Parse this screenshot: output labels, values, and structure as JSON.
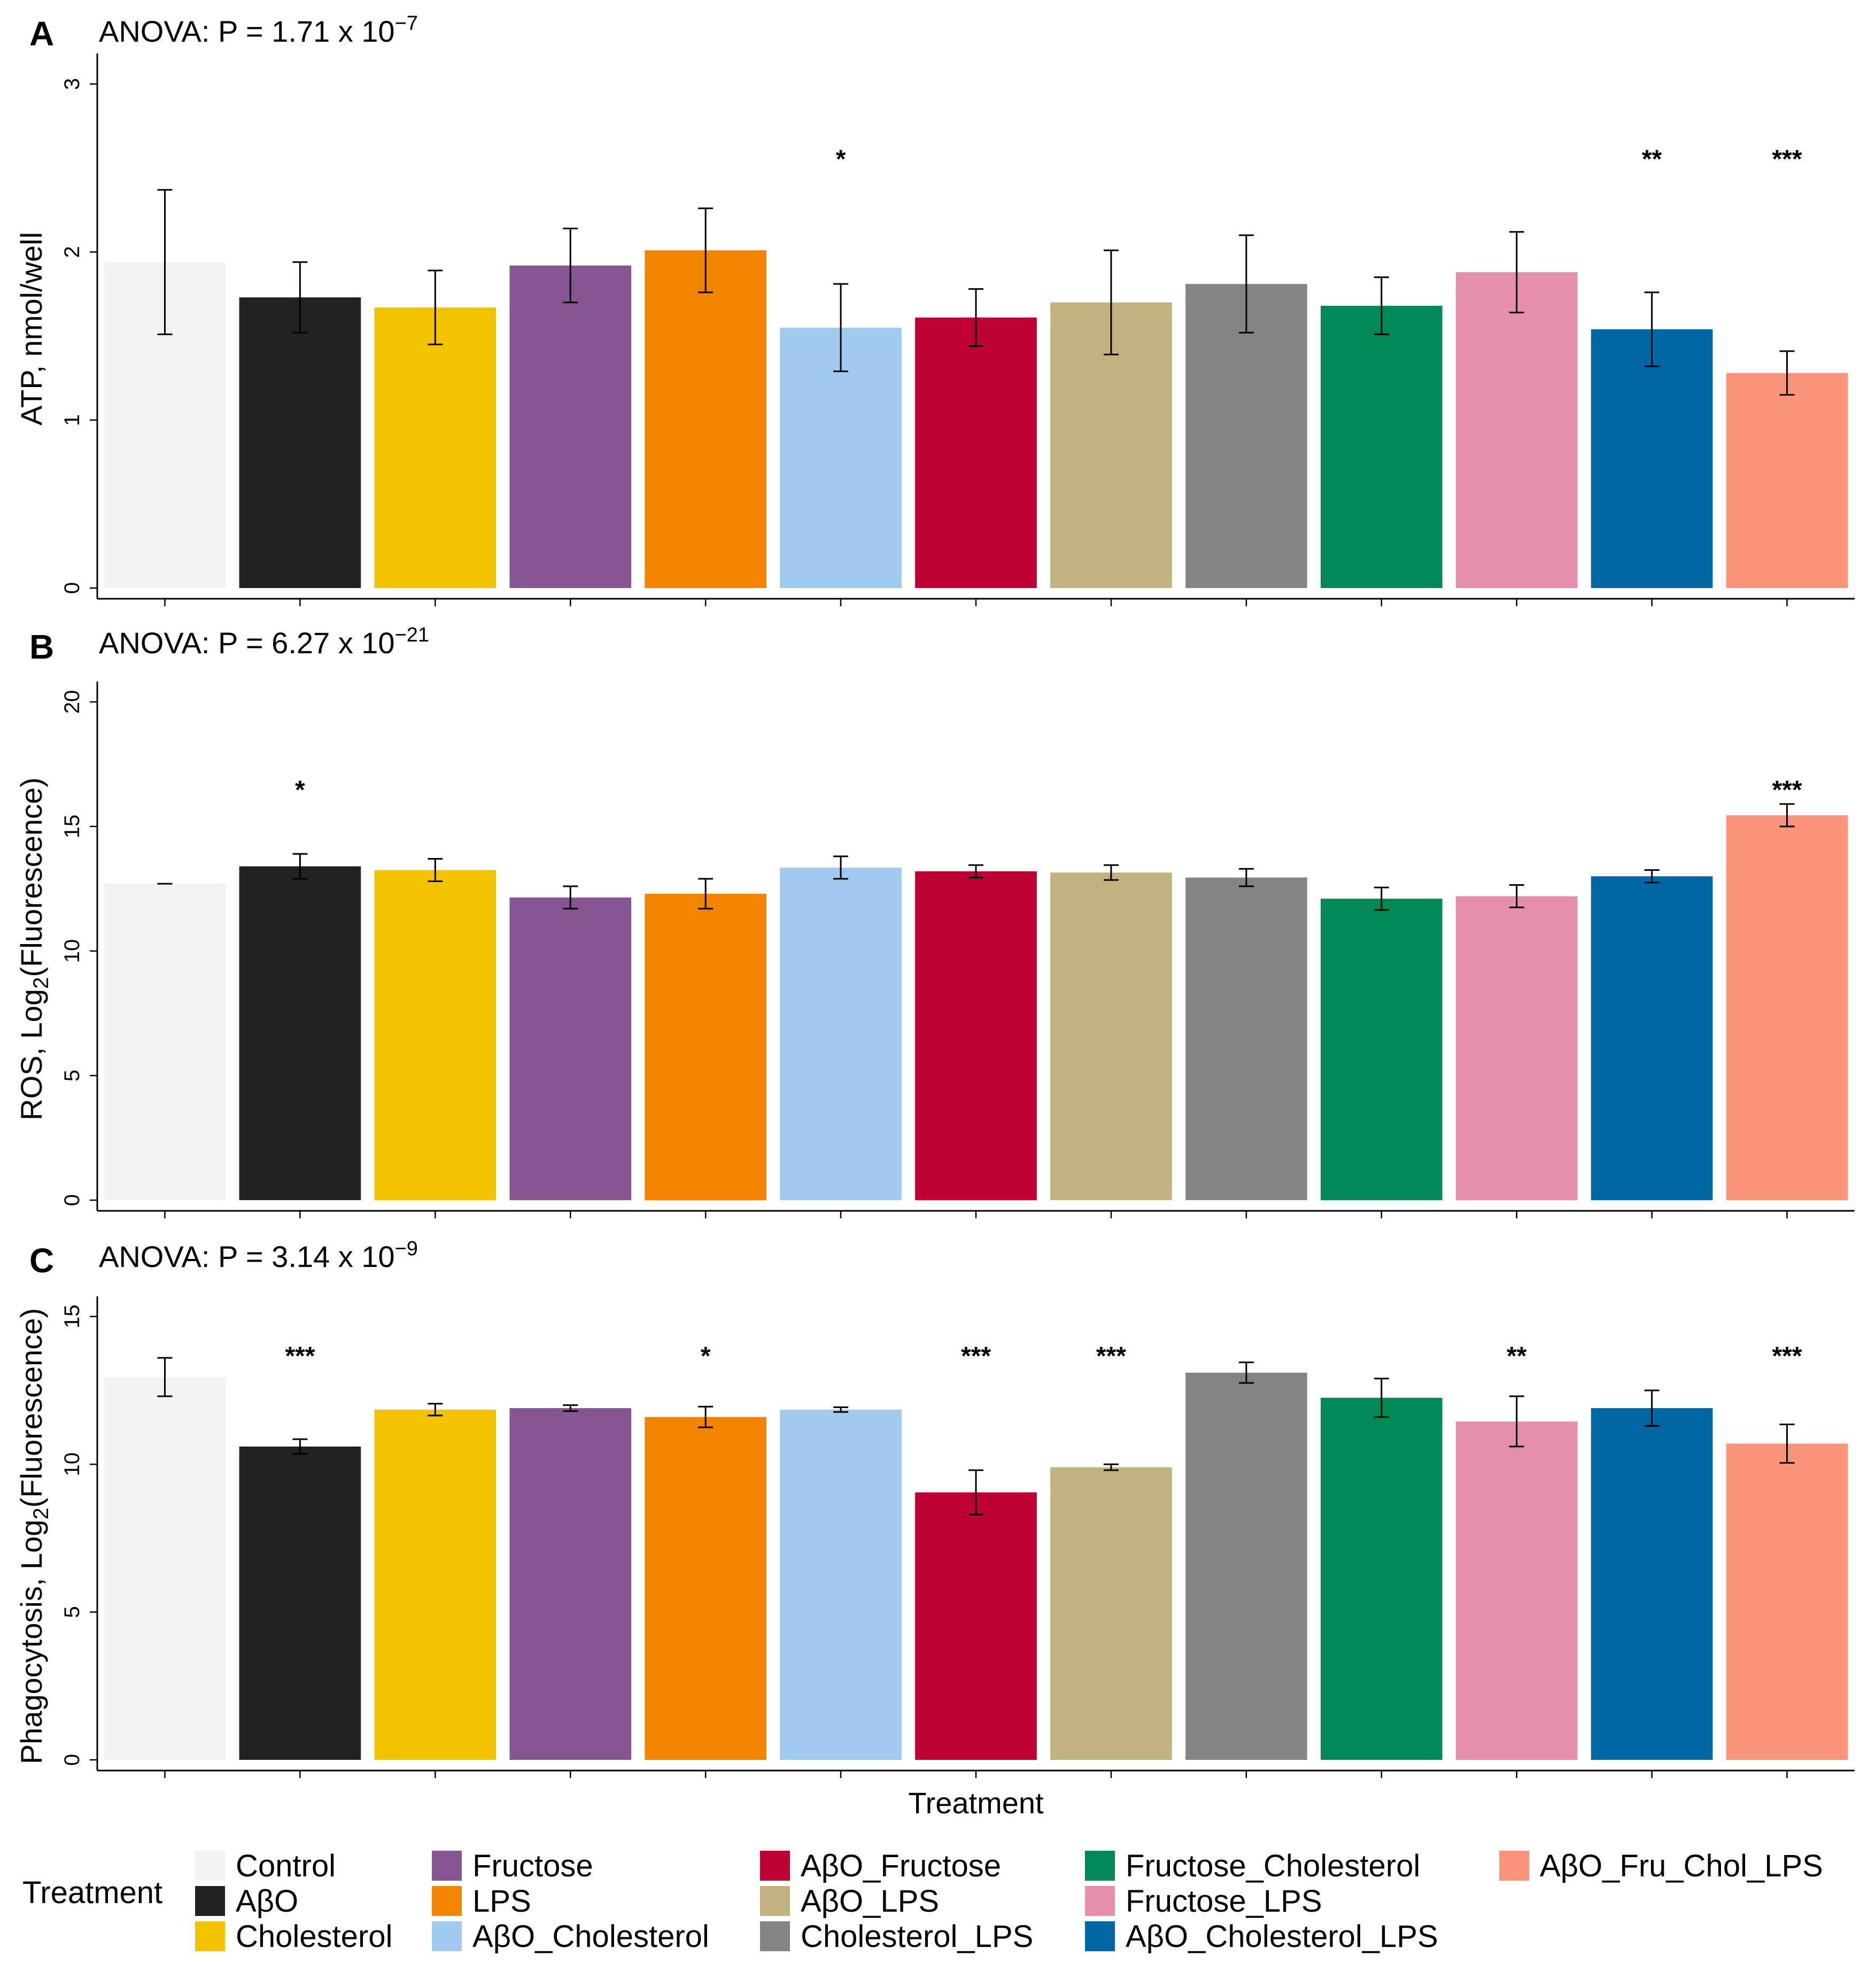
{
  "chart_data": [
    {
      "type": "bar",
      "panel": "A",
      "title": "ANOVA: P = 1.71 x 10",
      "title_exponent": "−7",
      "ylabel": "ATP, nmol/well",
      "ylabel_sub": "",
      "ylabel_suffix": "",
      "xlabel": "",
      "ylim": [
        0,
        3.15
      ],
      "yticks": [
        0,
        1,
        2,
        3
      ],
      "categories": [
        "Control",
        "AβO",
        "Cholesterol",
        "Fructose",
        "LPS",
        "AβO_Cholesterol",
        "AβO_Fructose",
        "AβO_LPS",
        "Cholesterol_LPS",
        "Fructose_Cholesterol",
        "Fructose_LPS",
        "AβO_Cholesterol_LPS",
        "AβO_Fru_Chol_LPS"
      ],
      "values": [
        1.94,
        1.73,
        1.67,
        1.92,
        2.01,
        1.55,
        1.61,
        1.7,
        1.81,
        1.68,
        1.88,
        1.54,
        1.28
      ],
      "errors": [
        0.43,
        0.21,
        0.22,
        0.22,
        0.25,
        0.26,
        0.17,
        0.31,
        0.29,
        0.17,
        0.24,
        0.22,
        0.13
      ],
      "significance": [
        "",
        "",
        "",
        "",
        "",
        "*",
        "",
        "",
        "",
        "",
        "",
        "**",
        "***"
      ],
      "sig_y": 2.55
    },
    {
      "type": "bar",
      "panel": "B",
      "title": "ANOVA: P = 6.27 x 10",
      "title_exponent": "−21",
      "ylabel": "ROS, Log",
      "ylabel_sub": "2",
      "ylabel_suffix": "(Fluorescence)",
      "xlabel": "",
      "ylim": [
        0,
        20.6
      ],
      "yticks": [
        0,
        5,
        10,
        15,
        20
      ],
      "categories": [
        "Control",
        "AβO",
        "Cholesterol",
        "Fructose",
        "LPS",
        "AβO_Cholesterol",
        "AβO_Fructose",
        "AβO_LPS",
        "Cholesterol_LPS",
        "Fructose_Cholesterol",
        "Fructose_LPS",
        "AβO_Cholesterol_LPS",
        "AβO_Fru_Chol_LPS"
      ],
      "values": [
        12.7,
        13.4,
        13.25,
        12.15,
        12.3,
        13.35,
        13.2,
        13.15,
        12.95,
        12.1,
        12.2,
        13.0,
        15.45
      ],
      "errors": [
        0.0,
        0.5,
        0.45,
        0.45,
        0.6,
        0.45,
        0.25,
        0.3,
        0.35,
        0.45,
        0.45,
        0.25,
        0.45
      ],
      "significance": [
        "",
        "*",
        "",
        "",
        "",
        "",
        "",
        "",
        "",
        "",
        "",
        "",
        "***"
      ],
      "sig_y": 16.45
    },
    {
      "type": "bar",
      "panel": "C",
      "title": "ANOVA: P = 3.14 x 10",
      "title_exponent": "−9",
      "ylabel": "Phagocytosis, Log",
      "ylabel_sub": "2",
      "ylabel_suffix": "(Fluorescence)",
      "xlabel": "Treatment",
      "ylim": [
        0,
        15.5
      ],
      "yticks": [
        0,
        5,
        10,
        15
      ],
      "categories": [
        "Control",
        "AβO",
        "Cholesterol",
        "Fructose",
        "LPS",
        "AβO_Cholesterol",
        "AβO_Fructose",
        "AβO_LPS",
        "Cholesterol_LPS",
        "Fructose_Cholesterol",
        "Fructose_LPS",
        "AβO_Cholesterol_LPS",
        "AβO_Fru_Chol_LPS"
      ],
      "values": [
        12.95,
        10.6,
        11.85,
        11.9,
        11.6,
        11.85,
        9.05,
        9.9,
        13.1,
        12.25,
        11.45,
        11.9,
        10.7
      ],
      "errors": [
        0.65,
        0.25,
        0.2,
        0.1,
        0.35,
        0.08,
        0.75,
        0.1,
        0.35,
        0.65,
        0.85,
        0.6,
        0.65
      ],
      "significance": [
        "",
        "***",
        "",
        "",
        "*",
        "",
        "***",
        "***",
        "",
        "",
        "**",
        "",
        "***"
      ],
      "sig_y": 13.65
    }
  ],
  "colors": [
    "#f1f2f2",
    "#222222",
    "#f3c300",
    "#875692",
    "#f38400",
    "#a1caf1",
    "#be0032",
    "#c2b280",
    "#848482",
    "#008856",
    "#e68fac",
    "#0067a5",
    "#f99379"
  ],
  "legend": {
    "title": "Treatment",
    "items": [
      "Control",
      "AβO",
      "Cholesterol",
      "Fructose",
      "LPS",
      "AβO_Cholesterol",
      "AβO_Fructose",
      "AβO_LPS",
      "Cholesterol_LPS",
      "Fructose_Cholesterol",
      "Fructose_LPS",
      "AβO_Cholesterol_LPS",
      "AβO_Fru_Chol_LPS"
    ]
  }
}
